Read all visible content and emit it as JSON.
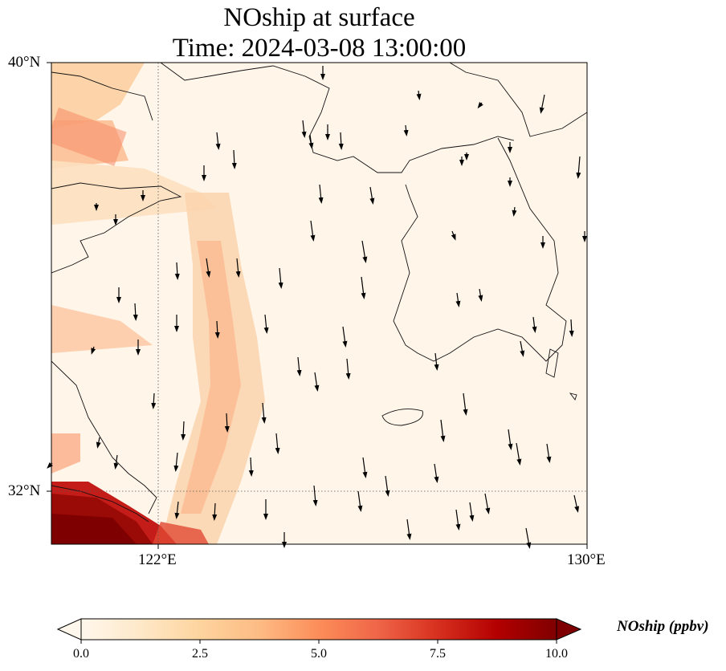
{
  "title": {
    "line1": "NOship at surface",
    "line2": "Time: 2024-03-08 13:00:00"
  },
  "map": {
    "lat_labels": [
      "40°N",
      "32°N"
    ],
    "lon_labels": [
      "122°E",
      "130°E"
    ],
    "lat_range": [
      31,
      40
    ],
    "lon_range": [
      120,
      130
    ],
    "gridlines": "dotted"
  },
  "colorbar": {
    "label": "NOship (ppbv)",
    "ticks": [
      "0.0",
      "2.5",
      "5.0",
      "7.5",
      "10.0"
    ],
    "vmin": 0,
    "vmax": 10,
    "colormap": "OrRd",
    "extend": "both"
  },
  "colors": {
    "low": "#fff7ec",
    "mid": "#fdbb84",
    "high": "#7f0000"
  }
}
